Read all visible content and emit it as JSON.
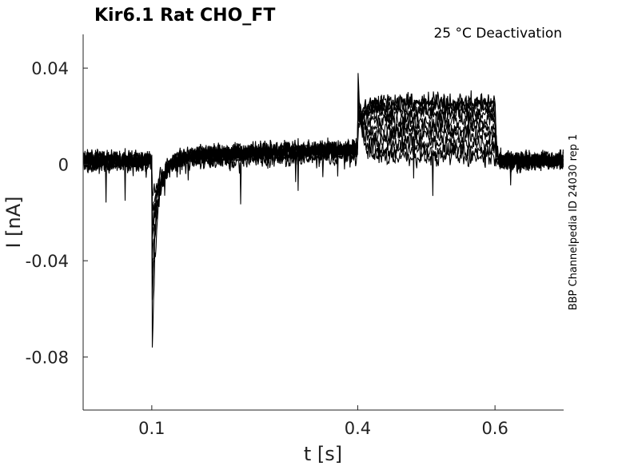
{
  "chart_data": {
    "type": "line",
    "title": "Kir6.1  Rat  CHO_FT",
    "annotation": "25 °C  Deactivation",
    "side_label": "BBP Channelpedia ID 24030 rep 1",
    "xlabel": "t [s]",
    "ylabel": "I [nA]",
    "xlim": [
      0,
      0.7
    ],
    "ylim": [
      -0.102,
      0.054
    ],
    "x_ticks": [
      0.1,
      0.4,
      0.6
    ],
    "x_tick_labels": [
      "0.1",
      "0.4",
      "0.6"
    ],
    "y_ticks": [
      0.04,
      0,
      -0.04,
      -0.08
    ],
    "y_tick_labels": [
      "0.04",
      "0",
      "-0.04",
      "-0.08"
    ],
    "grid": false,
    "legend": "none",
    "trace_color": "#000000",
    "protocol": {
      "step_on_s": 0.1,
      "step_off_s": 0.4,
      "end_s": 0.6,
      "transient_peak_nA": -0.088,
      "tail_peak_nA": 0.041,
      "num_sweeps": 10
    },
    "series": [
      {
        "values": [
          0.001,
          -0.086,
          0.0,
          0.002,
          0.003,
          0.039,
          0.004,
          0.003,
          0.002
        ]
      },
      {
        "values": [
          0.002,
          -0.062,
          0.003,
          0.004,
          0.005,
          0.034,
          0.007,
          0.006,
          0.001
        ]
      },
      {
        "values": [
          0.001,
          -0.048,
          0.004,
          0.005,
          0.006,
          0.03,
          0.01,
          0.009,
          0.002
        ]
      },
      {
        "values": [
          0.002,
          -0.04,
          0.003,
          0.005,
          0.007,
          0.027,
          0.013,
          0.012,
          0.001
        ]
      },
      {
        "values": [
          0.001,
          -0.034,
          0.004,
          0.006,
          0.007,
          0.024,
          0.016,
          0.015,
          0.002
        ]
      },
      {
        "values": [
          0.002,
          -0.03,
          0.003,
          0.005,
          0.006,
          0.022,
          0.019,
          0.018,
          0.001
        ]
      },
      {
        "values": [
          0.001,
          -0.026,
          0.004,
          0.006,
          0.007,
          0.02,
          0.021,
          0.021,
          0.002
        ]
      },
      {
        "values": [
          0.002,
          -0.022,
          0.003,
          0.005,
          0.006,
          0.018,
          0.023,
          0.023,
          0.001
        ]
      },
      {
        "values": [
          0.001,
          -0.018,
          0.004,
          0.006,
          0.007,
          0.016,
          0.024,
          0.025,
          0.002
        ]
      },
      {
        "values": [
          0.002,
          -0.014,
          0.003,
          0.005,
          0.006,
          0.014,
          0.025,
          0.026,
          0.001
        ]
      }
    ],
    "series_x": [
      0.05,
      0.101,
      0.2,
      0.3,
      0.398,
      0.402,
      0.5,
      0.598,
      0.65
    ]
  }
}
